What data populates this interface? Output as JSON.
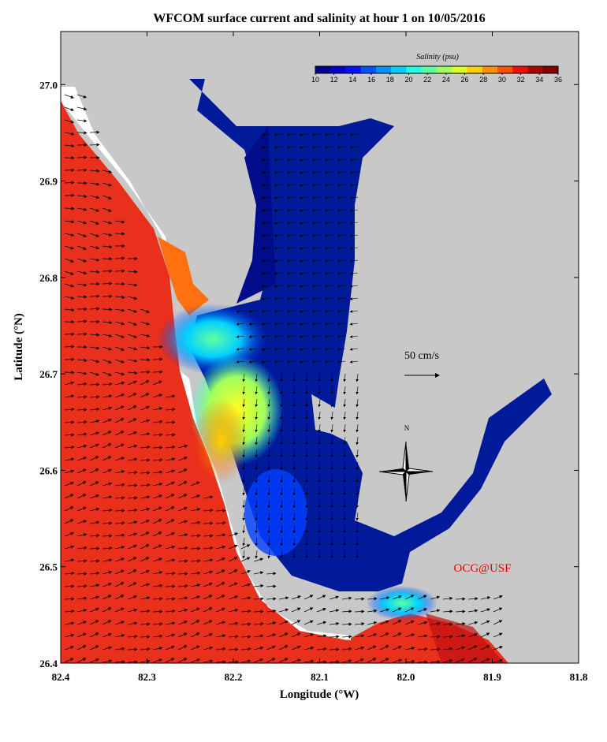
{
  "chart_data": {
    "type": "map",
    "title": "WFCOM surface current and salinity at hour 1 on 10/05/2016",
    "x_label": "Longitude (°W)",
    "y_label": "Latitude (°N)",
    "xlim": [
      82.4,
      81.8
    ],
    "ylim": [
      26.4,
      27.055
    ],
    "xticks": [
      82.4,
      82.3,
      82.2,
      82.1,
      {
        "value": 82,
        "label": "82.0"
      },
      81.9,
      81.8
    ],
    "yticks": [
      26.4,
      26.5,
      26.6,
      26.7,
      26.8,
      26.9,
      {
        "value": 27,
        "label": "27.0"
      }
    ],
    "colorbar": {
      "label": "Salinity (psu)",
      "range": [
        10,
        36
      ],
      "ticks": [
        10,
        12,
        14,
        16,
        18,
        20,
        22,
        24,
        26,
        28,
        30,
        32,
        34,
        36
      ],
      "colors": [
        "#00008f",
        "#0000cf",
        "#0010ff",
        "#0050ff",
        "#0090ff",
        "#00d0ff",
        "#20ffdf",
        "#60ff9f",
        "#a0ff5f",
        "#dfff20",
        "#ffd000",
        "#ff9000",
        "#ff5000",
        "#ef1000",
        "#af0000",
        "#800000"
      ]
    },
    "scale_label": "50 cm/s",
    "compass_label": "N",
    "credit": "OCG@USF"
  }
}
